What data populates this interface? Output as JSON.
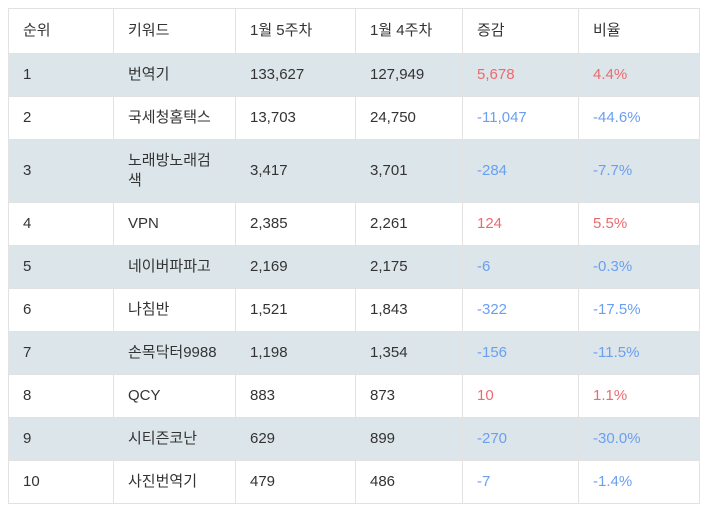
{
  "theme": {
    "up_color": "#ec6a6e",
    "down_color": "#6b9ff0",
    "stripe_color": "#dbe5ea",
    "border_color": "#e2e2e2",
    "text_color": "#333333"
  },
  "table": {
    "headers": [
      "순위",
      "키워드",
      "1월 5주차",
      "1월 4주차",
      "증감",
      "비율"
    ],
    "column_keys": [
      "rank",
      "keyword",
      "week5",
      "week4",
      "change",
      "ratio"
    ],
    "rows": [
      {
        "rank": "1",
        "keyword": "번역기",
        "week5": "133,627",
        "week4": "127,949",
        "change": "5,678",
        "ratio": "4.4%",
        "trend": "up"
      },
      {
        "rank": "2",
        "keyword": "국세청홈택스",
        "week5": "13,703",
        "week4": "24,750",
        "change": "-11,047",
        "ratio": "-44.6%",
        "trend": "down"
      },
      {
        "rank": "3",
        "keyword": "노래방노래검색",
        "week5": "3,417",
        "week4": "3,701",
        "change": "-284",
        "ratio": "-7.7%",
        "trend": "down"
      },
      {
        "rank": "4",
        "keyword": "VPN",
        "week5": "2,385",
        "week4": "2,261",
        "change": "124",
        "ratio": "5.5%",
        "trend": "up"
      },
      {
        "rank": "5",
        "keyword": "네이버파파고",
        "week5": "2,169",
        "week4": "2,175",
        "change": "-6",
        "ratio": "-0.3%",
        "trend": "down"
      },
      {
        "rank": "6",
        "keyword": "나침반",
        "week5": "1,521",
        "week4": "1,843",
        "change": "-322",
        "ratio": "-17.5%",
        "trend": "down"
      },
      {
        "rank": "7",
        "keyword": "손목닥터9988",
        "week5": "1,198",
        "week4": "1,354",
        "change": "-156",
        "ratio": "-11.5%",
        "trend": "down"
      },
      {
        "rank": "8",
        "keyword": "QCY",
        "week5": "883",
        "week4": "873",
        "change": "10",
        "ratio": "1.1%",
        "trend": "up"
      },
      {
        "rank": "9",
        "keyword": "시티즌코난",
        "week5": "629",
        "week4": "899",
        "change": "-270",
        "ratio": "-30.0%",
        "trend": "down"
      },
      {
        "rank": "10",
        "keyword": "사진번역기",
        "week5": "479",
        "week4": "486",
        "change": "-7",
        "ratio": "-1.4%",
        "trend": "down"
      }
    ]
  }
}
